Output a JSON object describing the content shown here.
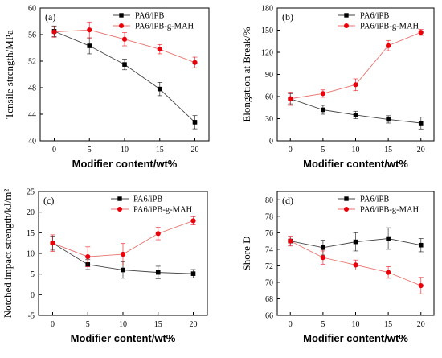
{
  "chart_data": [
    {
      "type": "line",
      "panel_label": "(a)",
      "ylabel": "Tensile strength/MPa",
      "xlabel": "Modifier content/wt%",
      "x": [
        0,
        5,
        10,
        15,
        20
      ],
      "xticks": [
        "0",
        "5",
        "10",
        "15",
        "20"
      ],
      "xlim": [
        -2,
        22
      ],
      "ylim": [
        40,
        60
      ],
      "yticks": [
        "40",
        "44",
        "48",
        "52",
        "56",
        "60"
      ],
      "series": [
        {
          "name": "PA6/iPB",
          "color": "#000000",
          "marker": "square",
          "values": [
            56.5,
            54.3,
            51.5,
            47.8,
            42.8
          ],
          "errors": [
            0.8,
            1.2,
            0.8,
            1.0,
            1.0
          ]
        },
        {
          "name": "PA6/iPB-g-MAH",
          "color": "#e8000b",
          "marker": "circle",
          "values": [
            56.4,
            56.7,
            55.3,
            53.8,
            51.8
          ],
          "errors": [
            0.8,
            1.2,
            1.0,
            0.7,
            0.8
          ]
        }
      ]
    },
    {
      "type": "line",
      "panel_label": "(b)",
      "ylabel": "Elongation at Break/%",
      "xlabel": "Modifier content/wt%",
      "x": [
        0,
        5,
        10,
        15,
        20
      ],
      "xticks": [
        "0",
        "5",
        "10",
        "15",
        "20"
      ],
      "xlim": [
        -2,
        22
      ],
      "ylim": [
        0,
        180
      ],
      "yticks": [
        "0",
        "30",
        "60",
        "90",
        "120",
        "150",
        "180"
      ],
      "series": [
        {
          "name": "PA6/iPB",
          "color": "#000000",
          "marker": "square",
          "values": [
            57,
            42,
            35,
            29,
            24
          ],
          "errors": [
            7,
            6,
            5,
            5,
            8
          ]
        },
        {
          "name": "PA6/iPB-g-MAH",
          "color": "#e8000b",
          "marker": "circle",
          "values": [
            57,
            64,
            76,
            129,
            147
          ],
          "errors": [
            9,
            5,
            8,
            7,
            4
          ]
        }
      ]
    },
    {
      "type": "line",
      "panel_label": "(c)",
      "ylabel": "Notched impact strength/kJ/m²",
      "xlabel": "Modifier content/wt%",
      "x": [
        0,
        5,
        10,
        15,
        20
      ],
      "xticks": [
        "0",
        "5",
        "10",
        "15",
        "20"
      ],
      "xlim": [
        -2,
        22
      ],
      "ylim": [
        -5,
        25
      ],
      "yticks": [
        "-5",
        "0",
        "5",
        "10",
        "15",
        "20",
        "25"
      ],
      "series": [
        {
          "name": "PA6/iPB",
          "color": "#000000",
          "marker": "square",
          "values": [
            12.5,
            7.3,
            6.0,
            5.4,
            5.1
          ],
          "errors": [
            1.7,
            1.2,
            2.0,
            1.5,
            1.0
          ]
        },
        {
          "name": "PA6/iPB-g-MAH",
          "color": "#e8000b",
          "marker": "circle",
          "values": [
            12.5,
            9.2,
            9.8,
            14.8,
            17.9
          ],
          "errors": [
            2.0,
            2.4,
            2.6,
            1.5,
            1.0
          ]
        }
      ]
    },
    {
      "type": "line",
      "panel_label": "(d)",
      "ylabel": "Shore D",
      "xlabel": "Modifier content/wt%",
      "x": [
        0,
        5,
        10,
        15,
        20
      ],
      "xticks": [
        "0",
        "5",
        "10",
        "15",
        "20"
      ],
      "xlim": [
        -2,
        22
      ],
      "ylim": [
        66,
        81
      ],
      "yticks": [
        "66",
        "68",
        "70",
        "72",
        "74",
        "76",
        "78",
        "80"
      ],
      "series": [
        {
          "name": "PA6/iPB",
          "color": "#000000",
          "marker": "square",
          "values": [
            75.0,
            74.2,
            74.9,
            75.3,
            74.5
          ],
          "errors": [
            0.5,
            0.9,
            1.1,
            1.3,
            0.8
          ]
        },
        {
          "name": "PA6/iPB-g-MAH",
          "color": "#e8000b",
          "marker": "circle",
          "values": [
            75.0,
            73.0,
            72.1,
            71.2,
            69.6
          ],
          "errors": [
            0.6,
            0.8,
            0.6,
            0.7,
            1.0
          ]
        }
      ]
    }
  ]
}
